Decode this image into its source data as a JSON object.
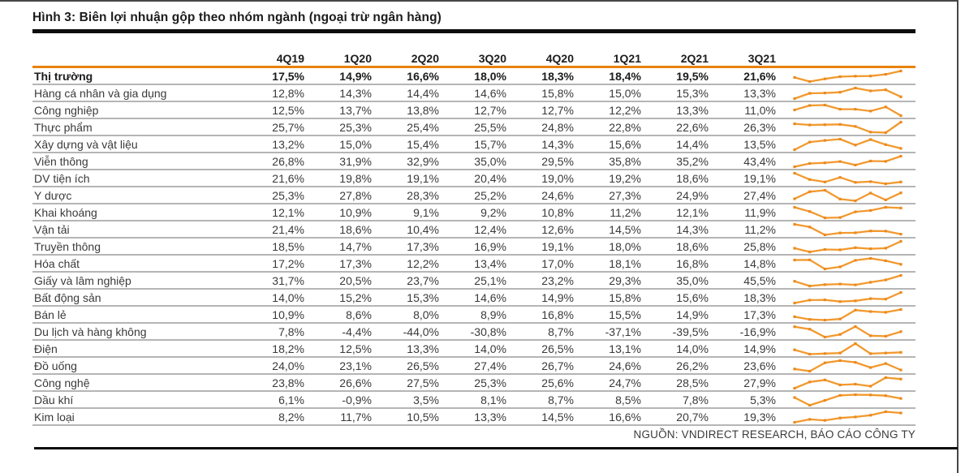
{
  "figure": {
    "title": "Hình 3: Biên lợi nhuận gộp theo nhóm ngành (ngoại trừ ngân hàng)",
    "source": "NGUỒN: VNDIRECT RESEARCH, BÁO CÁO CÔNG TY"
  },
  "colors": {
    "header_rule_orange": "#e8820c",
    "sparkline_orange": "#f2992e",
    "sparkline_marker": "#ea8a20",
    "row_divider_gray": "#b5b5b5",
    "title_bar_black": "#0d0d0d",
    "text_dark": "#1c1c1c",
    "text_body": "#3a3a3a"
  },
  "chart_data": {
    "type": "table",
    "unit": "%",
    "decimal_separator": ",",
    "sparkline_position": "right",
    "columns": [
      "4Q19",
      "1Q20",
      "2Q20",
      "3Q20",
      "4Q20",
      "1Q21",
      "2Q21",
      "3Q21"
    ],
    "rows": [
      {
        "label": "Thị trường",
        "bold": true,
        "values": [
          17.5,
          14.9,
          16.6,
          18.0,
          18.3,
          18.4,
          19.5,
          21.6
        ]
      },
      {
        "label": "Hàng cá nhân và gia dụng",
        "values": [
          12.8,
          14.3,
          14.4,
          14.6,
          15.8,
          15.0,
          15.3,
          13.3
        ]
      },
      {
        "label": "Công nghiệp",
        "values": [
          12.5,
          13.7,
          13.8,
          12.7,
          12.7,
          12.2,
          13.3,
          11.0
        ]
      },
      {
        "label": "Thực phẩm",
        "values": [
          25.7,
          25.3,
          25.4,
          25.5,
          24.8,
          22.8,
          22.6,
          26.3
        ]
      },
      {
        "label": "Xây dựng và vật liệu",
        "values": [
          13.2,
          15.0,
          15.4,
          15.7,
          14.3,
          15.6,
          14.4,
          13.5
        ]
      },
      {
        "label": "Viễn thông",
        "values": [
          26.8,
          31.9,
          32.9,
          35.0,
          29.5,
          35.8,
          35.2,
          43.4
        ]
      },
      {
        "label": "DV tiện ích",
        "values": [
          21.6,
          19.8,
          19.1,
          20.4,
          19.0,
          19.2,
          18.6,
          19.1
        ]
      },
      {
        "label": "Y dược",
        "values": [
          25.3,
          27.8,
          28.3,
          25.2,
          24.6,
          27.3,
          24.9,
          27.4
        ]
      },
      {
        "label": "Khai khoáng",
        "values": [
          12.1,
          10.9,
          9.1,
          9.2,
          10.8,
          11.2,
          12.1,
          11.9
        ]
      },
      {
        "label": "Vận tải",
        "values": [
          21.4,
          18.6,
          10.4,
          12.4,
          12.6,
          14.5,
          14.3,
          11.2
        ]
      },
      {
        "label": "Truyền thông",
        "values": [
          18.5,
          14.7,
          17.3,
          16.9,
          19.1,
          18.0,
          18.6,
          25.8
        ]
      },
      {
        "label": "Hóa chất",
        "values": [
          17.2,
          17.3,
          12.2,
          13.4,
          17.0,
          18.1,
          16.8,
          14.8
        ]
      },
      {
        "label": "Giấy và lâm nghiệp",
        "values": [
          31.7,
          20.5,
          23.7,
          25.1,
          23.2,
          29.3,
          35.0,
          45.5
        ]
      },
      {
        "label": "Bất động sản",
        "values": [
          14.0,
          15.2,
          15.3,
          14.6,
          14.9,
          15.8,
          15.6,
          18.3
        ]
      },
      {
        "label": "Bán lẻ",
        "values": [
          10.9,
          8.6,
          8.0,
          8.9,
          16.8,
          15.5,
          14.9,
          17.3
        ]
      },
      {
        "label": "Du lịch và hàng không",
        "values": [
          7.8,
          -4.4,
          -44.0,
          -30.8,
          8.7,
          -37.1,
          -39.5,
          -16.9
        ]
      },
      {
        "label": "Điện",
        "values": [
          18.2,
          12.5,
          13.3,
          14.0,
          26.5,
          13.1,
          14.0,
          14.9
        ]
      },
      {
        "label": "Đồ uống",
        "values": [
          24.0,
          23.1,
          26.5,
          27.4,
          26.7,
          24.6,
          26.2,
          23.6
        ]
      },
      {
        "label": "Công nghệ",
        "values": [
          23.8,
          26.6,
          27.5,
          25.3,
          25.6,
          24.7,
          28.5,
          27.9
        ]
      },
      {
        "label": "Dầu khí",
        "values": [
          6.1,
          -0.9,
          3.5,
          8.1,
          8.7,
          8.5,
          7.8,
          5.3
        ]
      },
      {
        "label": "Kim loại",
        "values": [
          8.2,
          11.7,
          10.5,
          13.3,
          14.5,
          16.6,
          20.7,
          19.3
        ]
      }
    ]
  }
}
